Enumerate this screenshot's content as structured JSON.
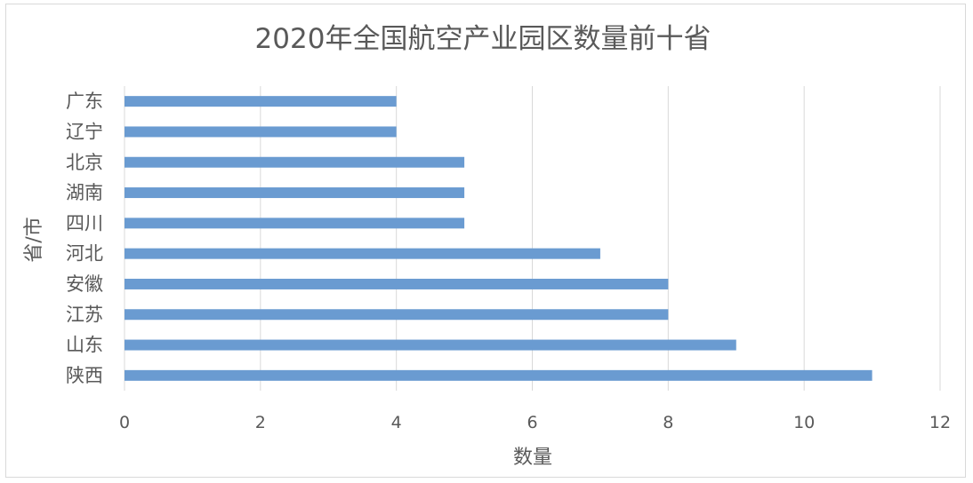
{
  "chart_data": {
    "type": "bar",
    "orientation": "horizontal",
    "title": "2020年全国航空产业园区数量前十省",
    "xlabel": "数量",
    "ylabel": "省/市",
    "categories": [
      "广东",
      "辽宁",
      "北京",
      "湖南",
      "四川",
      "河北",
      "安徽",
      "江苏",
      "山东",
      "陕西"
    ],
    "values": [
      4,
      4,
      5,
      5,
      5,
      7,
      8,
      8,
      9,
      11
    ],
    "xlim": [
      0,
      12
    ],
    "xticks": [
      0,
      2,
      4,
      6,
      8,
      10,
      12
    ],
    "grid": true,
    "legend": "none",
    "bar_color": "#6a9bd1",
    "grid_color": "#d9d9d9",
    "text_color": "#595959"
  }
}
